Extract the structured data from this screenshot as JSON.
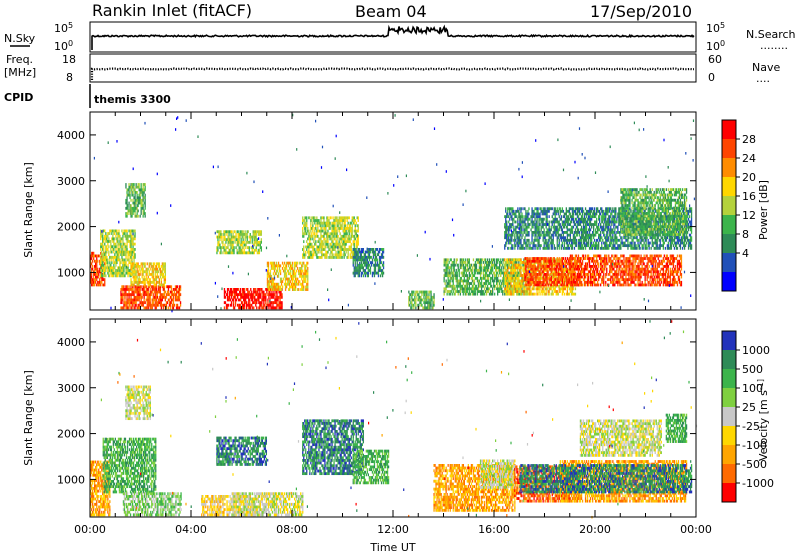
{
  "header": {
    "station": "Rankin Inlet (fitACF)",
    "beam": "Beam 04",
    "date": "17/Sep/2010"
  },
  "top_panels": {
    "nsky_label": "N.Sky",
    "nsky_ticks": [
      "10^5",
      "10^0"
    ],
    "nsearch_ticks": [
      "10^5",
      "10^0"
    ],
    "nsearch_label": "N.Search",
    "nsearch_dots": "........",
    "freq_label": "Freq.",
    "freq_unit": "[MHz]",
    "freq_ticks": [
      "18",
      "8"
    ],
    "nave_ticks": [
      "60",
      "0"
    ],
    "nave_label": "Nave",
    "nave_dots": "....",
    "cpid_label": "CPID",
    "cpid_value": "themis 3300"
  },
  "chart_data": [
    {
      "type": "heatmap",
      "title": "",
      "ylabel": "Slant Range [km]",
      "xlabel": "",
      "xlim": [
        0,
        24
      ],
      "ylim": [
        180,
        4500
      ],
      "yticks": [
        "1000",
        "2000",
        "3000",
        "4000"
      ],
      "colorbar_label": "Power [dB]",
      "colorbar_ticks": [
        "4",
        "8",
        "12",
        "16",
        "20",
        "24",
        "28"
      ],
      "colors": [
        "#0000ff",
        "#2050b8",
        "#2e8b57",
        "#3cb44b",
        "#b4d23c",
        "#ffd700",
        "#ff8c00",
        "#ff4500",
        "#ff0000"
      ],
      "regions": [
        {
          "t0": 0.0,
          "t1": 0.6,
          "r0": 700,
          "r1": 1400,
          "level": 7
        },
        {
          "t0": 0.4,
          "t1": 1.8,
          "r0": 900,
          "r1": 1900,
          "level": 4
        },
        {
          "t0": 1.2,
          "t1": 3.6,
          "r0": 200,
          "r1": 700,
          "level": 7
        },
        {
          "t0": 1.6,
          "t1": 3.0,
          "r0": 700,
          "r1": 1200,
          "level": 5
        },
        {
          "t0": 1.4,
          "t1": 2.2,
          "r0": 2200,
          "r1": 2900,
          "level": 3
        },
        {
          "t0": 5.3,
          "t1": 7.6,
          "r0": 200,
          "r1": 650,
          "level": 8
        },
        {
          "t0": 5.0,
          "t1": 6.8,
          "r0": 1400,
          "r1": 1900,
          "level": 4
        },
        {
          "t0": 7.0,
          "t1": 8.6,
          "r0": 600,
          "r1": 1200,
          "level": 5
        },
        {
          "t0": 8.4,
          "t1": 10.6,
          "r0": 1300,
          "r1": 2200,
          "level": 4
        },
        {
          "t0": 10.4,
          "t1": 11.6,
          "r0": 900,
          "r1": 1500,
          "level": 2
        },
        {
          "t0": 12.6,
          "t1": 13.6,
          "r0": 200,
          "r1": 600,
          "level": 3
        },
        {
          "t0": 14.0,
          "t1": 17.4,
          "r0": 500,
          "r1": 1300,
          "level": 3
        },
        {
          "t0": 16.4,
          "t1": 19.2,
          "r0": 500,
          "r1": 1300,
          "level": 5
        },
        {
          "t0": 17.2,
          "t1": 19.4,
          "r0": 700,
          "r1": 1300,
          "level": 7
        },
        {
          "t0": 19.0,
          "t1": 23.4,
          "r0": 700,
          "r1": 1350,
          "level": 7
        },
        {
          "t0": 16.4,
          "t1": 23.8,
          "r0": 1500,
          "r1": 2400,
          "level": 2
        },
        {
          "t0": 21.0,
          "t1": 23.6,
          "r0": 1800,
          "r1": 2800,
          "level": 3
        }
      ]
    },
    {
      "type": "heatmap",
      "title": "",
      "ylabel": "Slant Range [km]",
      "xlabel": "Time UT",
      "xlim": [
        0,
        24
      ],
      "ylim": [
        180,
        4500
      ],
      "xticks": [
        "00:00",
        "04:00",
        "08:00",
        "12:00",
        "16:00",
        "20:00",
        "00:00"
      ],
      "yticks": [
        "1000",
        "2000",
        "3000",
        "4000"
      ],
      "colorbar_label": "Velocity [m s^-1]",
      "colorbar_ticks": [
        "1000",
        "500",
        "100",
        "25",
        "-25",
        "-100",
        "-500",
        "-1000"
      ],
      "colors": [
        "#2233bb",
        "#2e8b57",
        "#3cb44b",
        "#7fd040",
        "#c8c8c8",
        "#ffd700",
        "#ffa500",
        "#ff6a00",
        "#ff0000"
      ],
      "regions": [
        {
          "t0": 0.0,
          "t1": 0.8,
          "r0": 200,
          "r1": 1400,
          "level": 6
        },
        {
          "t0": 0.5,
          "t1": 2.6,
          "r0": 700,
          "r1": 1900,
          "level": 2
        },
        {
          "t0": 1.3,
          "t1": 3.6,
          "r0": 200,
          "r1": 700,
          "level": 3
        },
        {
          "t0": 1.4,
          "t1": 2.4,
          "r0": 2300,
          "r1": 3000,
          "level": 4
        },
        {
          "t0": 4.4,
          "t1": 6.6,
          "r0": 200,
          "r1": 650,
          "level": 5
        },
        {
          "t0": 5.6,
          "t1": 8.4,
          "r0": 200,
          "r1": 700,
          "level": 4
        },
        {
          "t0": 5.0,
          "t1": 7.0,
          "r0": 1300,
          "r1": 1900,
          "level": 1
        },
        {
          "t0": 8.4,
          "t1": 10.8,
          "r0": 1100,
          "r1": 2300,
          "level": 1
        },
        {
          "t0": 10.4,
          "t1": 11.8,
          "r0": 900,
          "r1": 1600,
          "level": 2
        },
        {
          "t0": 13.6,
          "t1": 16.8,
          "r0": 300,
          "r1": 1300,
          "level": 6
        },
        {
          "t0": 15.4,
          "t1": 16.8,
          "r0": 800,
          "r1": 1400,
          "level": 4
        },
        {
          "t0": 16.8,
          "t1": 19.4,
          "r0": 500,
          "r1": 1300,
          "level": 7
        },
        {
          "t0": 18.6,
          "t1": 23.6,
          "r0": 500,
          "r1": 1400,
          "level": 6
        },
        {
          "t0": 17.0,
          "t1": 23.8,
          "r0": 700,
          "r1": 1300,
          "level": 1
        },
        {
          "t0": 19.4,
          "t1": 22.6,
          "r0": 1500,
          "r1": 2300,
          "level": 4
        },
        {
          "t0": 22.8,
          "t1": 23.6,
          "r0": 1800,
          "r1": 2400,
          "level": 2
        }
      ]
    }
  ]
}
